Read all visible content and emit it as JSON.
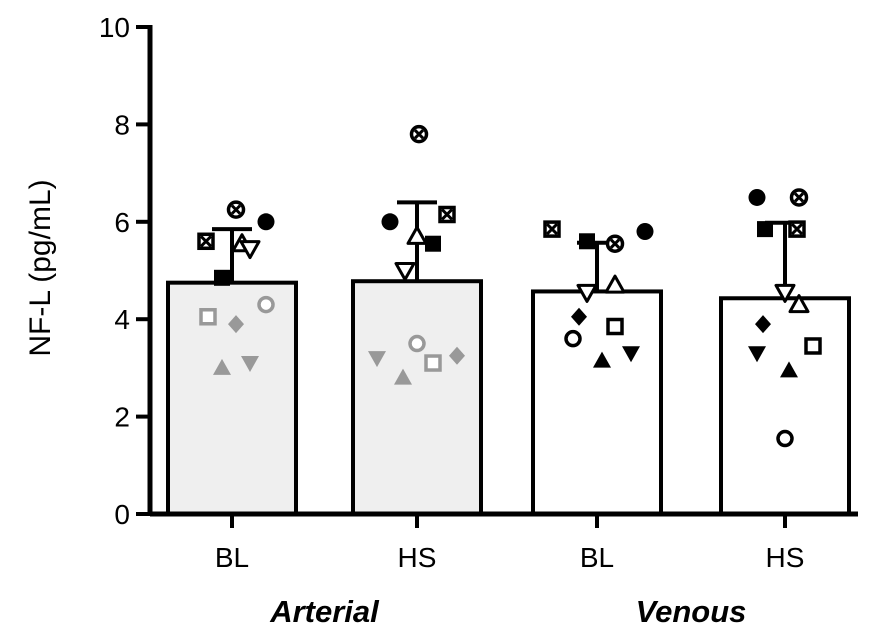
{
  "chart_data": {
    "type": "bar",
    "ylabel": "NF-L (pg/mL)",
    "ylim": [
      0,
      10
    ],
    "yticks": [
      0,
      2,
      4,
      6,
      8,
      10
    ],
    "grid": false,
    "categories": [
      "BL",
      "HS",
      "BL",
      "HS"
    ],
    "groups": [
      {
        "label": "Arterial",
        "categories": [
          0,
          1
        ]
      },
      {
        "label": "Venous",
        "categories": [
          2,
          3
        ]
      }
    ],
    "bars": [
      {
        "category": "BL",
        "group": "Arterial",
        "mean": 4.75,
        "sd": 1.1,
        "fill": "#efefef",
        "points": [
          {
            "marker": "x-circle",
            "color": "#000000",
            "value": 6.25
          },
          {
            "marker": "filled-circle",
            "color": "#000000",
            "value": 6.0
          },
          {
            "marker": "x-square",
            "color": "#000000",
            "value": 5.6
          },
          {
            "marker": "open-triangle-up",
            "color": "#000000",
            "value": 5.55
          },
          {
            "marker": "open-triangle-down",
            "color": "#000000",
            "value": 5.45
          },
          {
            "marker": "filled-square",
            "color": "#000000",
            "value": 4.85
          },
          {
            "marker": "open-circle",
            "color": "#999999",
            "value": 4.3
          },
          {
            "marker": "open-square",
            "color": "#999999",
            "value": 4.05
          },
          {
            "marker": "filled-diamond",
            "color": "#999999",
            "value": 3.9
          },
          {
            "marker": "filled-triangle-down",
            "color": "#999999",
            "value": 3.1
          },
          {
            "marker": "filled-triangle-up",
            "color": "#999999",
            "value": 3.0
          }
        ]
      },
      {
        "category": "HS",
        "group": "Arterial",
        "mean": 4.78,
        "sd": 1.62,
        "fill": "#efefef",
        "points": [
          {
            "marker": "x-circle",
            "color": "#000000",
            "value": 7.8
          },
          {
            "marker": "x-square",
            "color": "#000000",
            "value": 6.15
          },
          {
            "marker": "filled-circle",
            "color": "#000000",
            "value": 6.0
          },
          {
            "marker": "open-triangle-up",
            "color": "#000000",
            "value": 5.7
          },
          {
            "marker": "filled-square",
            "color": "#000000",
            "value": 5.55
          },
          {
            "marker": "open-triangle-down",
            "color": "#000000",
            "value": 5.0
          },
          {
            "marker": "open-circle",
            "color": "#999999",
            "value": 3.5
          },
          {
            "marker": "filled-diamond",
            "color": "#999999",
            "value": 3.25
          },
          {
            "marker": "filled-triangle-down",
            "color": "#999999",
            "value": 3.2
          },
          {
            "marker": "open-square",
            "color": "#999999",
            "value": 3.1
          },
          {
            "marker": "filled-triangle-up",
            "color": "#999999",
            "value": 2.8
          }
        ]
      },
      {
        "category": "BL",
        "group": "Venous",
        "mean": 4.57,
        "sd": 1.0,
        "fill": "#ffffff",
        "points": [
          {
            "marker": "x-square",
            "color": "#000000",
            "value": 5.85
          },
          {
            "marker": "filled-circle",
            "color": "#000000",
            "value": 5.8
          },
          {
            "marker": "filled-square",
            "color": "#000000",
            "value": 5.6
          },
          {
            "marker": "x-circle",
            "color": "#000000",
            "value": 5.55
          },
          {
            "marker": "open-triangle-up",
            "color": "#000000",
            "value": 4.7
          },
          {
            "marker": "open-triangle-down",
            "color": "#000000",
            "value": 4.55
          },
          {
            "marker": "filled-diamond",
            "color": "#000000",
            "value": 4.05
          },
          {
            "marker": "open-square",
            "color": "#000000",
            "value": 3.85
          },
          {
            "marker": "open-circle",
            "color": "#000000",
            "value": 3.6
          },
          {
            "marker": "filled-triangle-down",
            "color": "#000000",
            "value": 3.3
          },
          {
            "marker": "filled-triangle-up",
            "color": "#000000",
            "value": 3.15
          }
        ]
      },
      {
        "category": "HS",
        "group": "Venous",
        "mean": 4.43,
        "sd": 1.55,
        "fill": "#ffffff",
        "points": [
          {
            "marker": "filled-circle",
            "color": "#000000",
            "value": 6.5
          },
          {
            "marker": "x-circle",
            "color": "#000000",
            "value": 6.5
          },
          {
            "marker": "filled-square",
            "color": "#000000",
            "value": 5.85
          },
          {
            "marker": "x-square",
            "color": "#000000",
            "value": 5.85
          },
          {
            "marker": "open-triangle-down",
            "color": "#000000",
            "value": 4.55
          },
          {
            "marker": "open-triangle-up",
            "color": "#000000",
            "value": 4.3
          },
          {
            "marker": "filled-diamond",
            "color": "#000000",
            "value": 3.9
          },
          {
            "marker": "open-square",
            "color": "#000000",
            "value": 3.45
          },
          {
            "marker": "filled-triangle-down",
            "color": "#000000",
            "value": 3.3
          },
          {
            "marker": "filled-triangle-up",
            "color": "#000000",
            "value": 2.95
          },
          {
            "marker": "open-circle",
            "color": "#000000",
            "value": 1.55
          }
        ]
      }
    ]
  }
}
